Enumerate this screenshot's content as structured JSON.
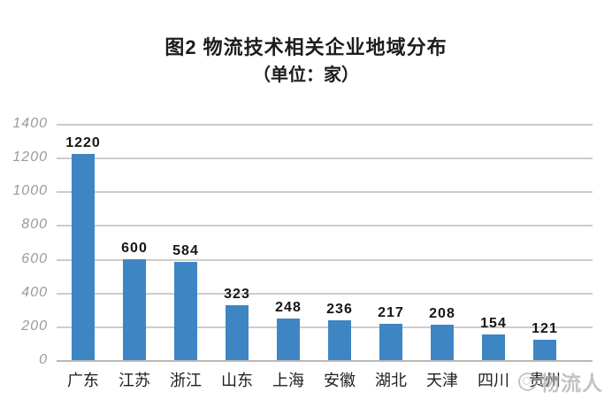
{
  "title": {
    "line1": "图2 物流技术相关企业地域分布",
    "line2": "（单位：家）"
  },
  "watermark": {
    "text": "物流人",
    "logo": "double-circle-icon"
  },
  "colors": {
    "bar": "#3E85C3",
    "gridline": "#CCCCCC",
    "axis_tick_label": "#9A9A9A",
    "data_label": "#161616",
    "category_label": "#1E1E1E",
    "watermark": "#9F9F9F"
  },
  "chart_data": {
    "type": "bar",
    "title": "图2 物流技术相关企业地域分布",
    "subtitle": "（单位：家）",
    "categories": [
      "广东",
      "江苏",
      "浙江",
      "山东",
      "上海",
      "安徽",
      "湖北",
      "天津",
      "四川",
      "贵州"
    ],
    "values": [
      1220,
      600,
      584,
      323,
      248,
      236,
      217,
      208,
      154,
      121
    ],
    "xlabel": "",
    "ylabel": "",
    "ylim": [
      0,
      1400
    ],
    "ytick_interval": 200,
    "yticks": [
      0,
      200,
      400,
      600,
      800,
      1000,
      1200,
      1400
    ],
    "grid": true,
    "legend": false,
    "bar_labels_shown": true
  }
}
